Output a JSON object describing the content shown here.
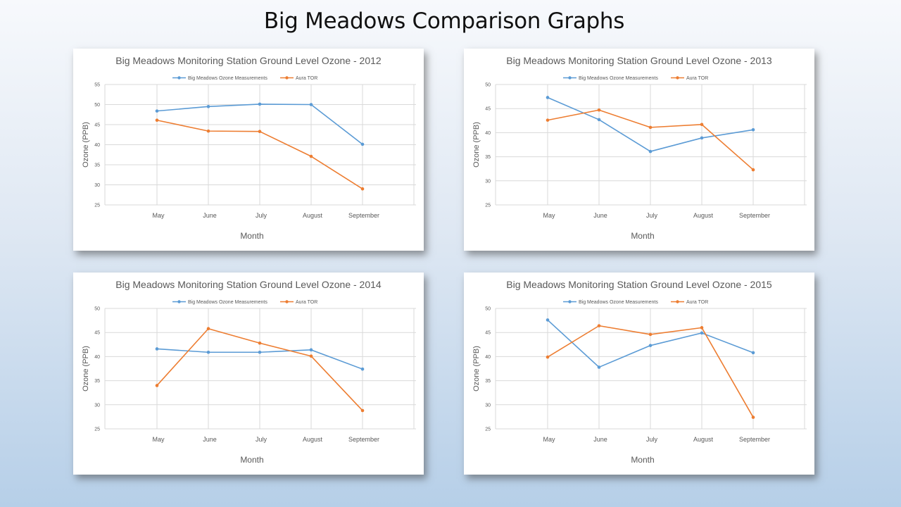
{
  "slide": {
    "title": "Big Meadows Comparison Graphs"
  },
  "colors": {
    "meadows": "#5b9bd5",
    "aura": "#ed7d31",
    "grid": "#d9d9d9",
    "text": "#595959"
  },
  "chart_data": [
    {
      "type": "line",
      "title": "Big Meadows Monitoring Station Ground Level Ozone - 2012",
      "xlabel": "Month",
      "ylabel": "Ozone (PPB)",
      "categories": [
        "May",
        "June",
        "July",
        "August",
        "September"
      ],
      "ylim": [
        25,
        55
      ],
      "yticks": [
        25,
        30,
        35,
        40,
        45,
        50,
        55
      ],
      "grid": true,
      "legend_position": "top",
      "series": [
        {
          "name": "Big Meadows Ozone Measurements",
          "values": [
            48.4,
            49.5,
            50.1,
            50.0,
            40.1
          ]
        },
        {
          "name": "Aura TOR",
          "values": [
            46.1,
            43.4,
            43.3,
            37.1,
            29.0
          ]
        }
      ]
    },
    {
      "type": "line",
      "title": "Big Meadows Monitoring Station Ground Level Ozone - 2013",
      "xlabel": "Month",
      "ylabel": "Ozone (PPB)",
      "categories": [
        "May",
        "June",
        "July",
        "August",
        "September"
      ],
      "ylim": [
        25,
        50
      ],
      "yticks": [
        25,
        30,
        35,
        40,
        45,
        50
      ],
      "grid": true,
      "legend_position": "top",
      "series": [
        {
          "name": "Big Meadows Ozone Measurements",
          "values": [
            47.3,
            42.7,
            36.1,
            38.9,
            40.6
          ]
        },
        {
          "name": "Aura TOR",
          "values": [
            42.6,
            44.7,
            41.1,
            41.7,
            32.3
          ]
        }
      ]
    },
    {
      "type": "line",
      "title": "Big Meadows Monitoring Station Ground Level Ozone - 2014",
      "xlabel": "Month",
      "ylabel": "Ozone (PPB)",
      "categories": [
        "May",
        "June",
        "July",
        "August",
        "September"
      ],
      "ylim": [
        25,
        50
      ],
      "yticks": [
        25,
        30,
        35,
        40,
        45,
        50
      ],
      "grid": true,
      "legend_position": "top",
      "series": [
        {
          "name": "Big Meadows Ozone Measurements",
          "values": [
            41.6,
            40.9,
            40.9,
            41.4,
            37.4
          ]
        },
        {
          "name": "Aura TOR",
          "values": [
            34.0,
            45.8,
            42.8,
            40.1,
            28.8
          ]
        }
      ]
    },
    {
      "type": "line",
      "title": "Big Meadows Monitoring Station Ground Level Ozone - 2015",
      "xlabel": "Month",
      "ylabel": "Ozone (PPB)",
      "categories": [
        "May",
        "June",
        "July",
        "August",
        "September"
      ],
      "ylim": [
        25,
        50
      ],
      "yticks": [
        25,
        30,
        35,
        40,
        45,
        50
      ],
      "grid": true,
      "legend_position": "top",
      "series": [
        {
          "name": "Big Meadows Ozone Measurements",
          "values": [
            47.6,
            37.8,
            42.3,
            44.9,
            40.8
          ]
        },
        {
          "name": "Aura TOR",
          "values": [
            39.9,
            46.4,
            44.6,
            46.0,
            27.4
          ]
        }
      ]
    }
  ]
}
